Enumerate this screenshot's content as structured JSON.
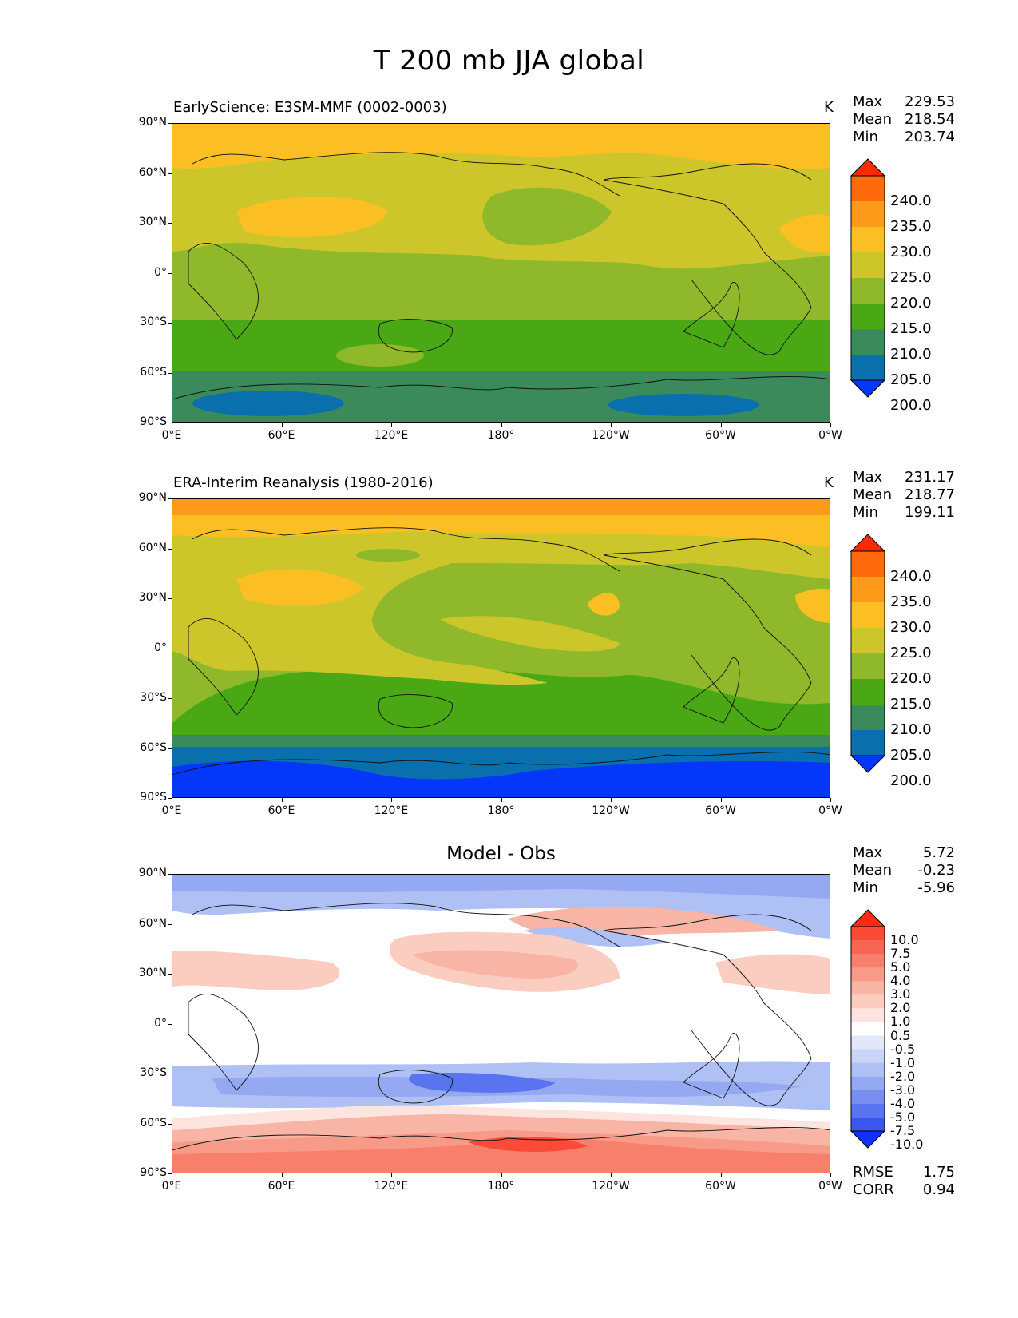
{
  "figure_title": "T 200 mb JJA global",
  "panels": [
    {
      "title": "EarlyScience: E3SM-MMF (0002-0003)",
      "units": "K",
      "stats": {
        "Max": "229.53",
        "Mean": "218.54",
        "Min": "203.74"
      },
      "colorbar_labels": [
        "240.0",
        "235.0",
        "230.0",
        "225.0",
        "220.0",
        "215.0",
        "210.0",
        "205.0",
        "200.0"
      ],
      "colorbar_colors": [
        "#ff2a00",
        "#fe6a0c",
        "#fd9a1a",
        "#fbbf24",
        "#cdc62a",
        "#8fb82a",
        "#4ba815",
        "#3a8a5c",
        "#0a6fad",
        "#0537fa"
      ]
    },
    {
      "title": "ERA-Interim Reanalysis (1980-2016)",
      "units": "K",
      "stats": {
        "Max": "231.17",
        "Mean": "218.77",
        "Min": "199.11"
      },
      "colorbar_labels": [
        "240.0",
        "235.0",
        "230.0",
        "225.0",
        "220.0",
        "215.0",
        "210.0",
        "205.0",
        "200.0"
      ],
      "colorbar_colors": [
        "#ff2a00",
        "#fe6a0c",
        "#fd9a1a",
        "#fbbf24",
        "#cdc62a",
        "#8fb82a",
        "#4ba815",
        "#3a8a5c",
        "#0a6fad",
        "#0537fa"
      ]
    },
    {
      "title": "Model - Obs",
      "units": "",
      "stats": {
        "Max": "5.72",
        "Mean": "-0.23",
        "Min": "-5.96"
      },
      "colorbar_labels": [
        "10.0",
        "7.5",
        "5.0",
        "4.0",
        "3.0",
        "2.0",
        "1.0",
        "0.5",
        "-0.5",
        "-1.0",
        "-2.0",
        "-3.0",
        "-4.0",
        "-5.0",
        "-7.5",
        "-10.0"
      ],
      "colorbar_colors": [
        "#ff2a10",
        "#fb4a36",
        "#f86552",
        "#f77f6c",
        "#f79a88",
        "#f8b4a4",
        "#fbcdc1",
        "#fde4de",
        "#ffffff",
        "#e2e8fb",
        "#c9d4f8",
        "#afc0f5",
        "#94a9f1",
        "#788ff0",
        "#5a73ef",
        "#3a57f0",
        "#0e32fb"
      ],
      "rmse_label": "RMSE",
      "rmse": "1.75",
      "corr_label": "CORR",
      "corr": "0.94"
    }
  ],
  "y_ticks": [
    "90°N",
    "60°N",
    "30°N",
    "0°",
    "30°S",
    "60°S",
    "90°S"
  ],
  "x_ticks": [
    "0°E",
    "60°E",
    "120°E",
    "180°",
    "120°W",
    "60°W",
    "0°W"
  ]
}
